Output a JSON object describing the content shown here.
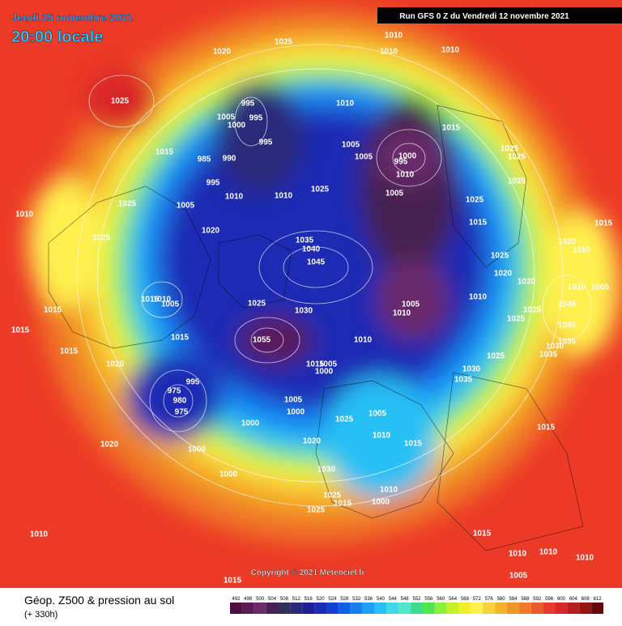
{
  "header": {
    "date": "Jeudi 25 novembre 2021",
    "time": "20:00 locale",
    "run": "Run GFS 0 Z du Vendredi 12 novembre 2021",
    "copyright": "Copyright © 2021 Meteociel.fr"
  },
  "footer": {
    "title": "Géop. Z500 & pression au sol",
    "lead": "(+ 330h)"
  },
  "scale": {
    "values": [
      492,
      496,
      500,
      504,
      508,
      512,
      516,
      520,
      524,
      528,
      532,
      536,
      540,
      544,
      548,
      552,
      556,
      560,
      564,
      568,
      572,
      576,
      580,
      584,
      588,
      592,
      596,
      600,
      604,
      608,
      612
    ],
    "colors": [
      "#4b1040",
      "#5a1a55",
      "#6b2a6b",
      "#452050",
      "#30305a",
      "#2a2a7a",
      "#1e1e96",
      "#1a2ab4",
      "#1440d2",
      "#1060e6",
      "#1480f0",
      "#1ca0f5",
      "#28c0f5",
      "#40d8e8",
      "#50e6c8",
      "#3cdc8c",
      "#50e650",
      "#8cf03c",
      "#c8f028",
      "#f0f028",
      "#fff050",
      "#f8d23c",
      "#f5b428",
      "#f09628",
      "#f07828",
      "#eb5a28",
      "#e63c28",
      "#d82828",
      "#b41e1e",
      "#961414",
      "#640a0a"
    ]
  },
  "isobar_labels": [
    "1025",
    "1010",
    "1020",
    "1010",
    "1010",
    "1025",
    "1010",
    "995",
    "995",
    "1005",
    "1000",
    "1015",
    "995",
    "1015",
    "1005",
    "1005",
    "1000",
    "995",
    "1010",
    "1025",
    "1025",
    "985",
    "990",
    "995",
    "1025",
    "1010",
    "1010",
    "1025",
    "1005",
    "1025",
    "1005",
    "1025",
    "1010",
    "1015",
    "1015",
    "1020",
    "1025",
    "1035",
    "1040",
    "1020",
    "1025",
    "1045",
    "1010",
    "1020",
    "1020",
    "1015",
    "1010",
    "1005",
    "1010",
    "1005",
    "1025",
    "1005",
    "1010",
    "1030",
    "1010",
    "1015",
    "1025",
    "1045",
    "1025",
    "1030",
    "1015",
    "1015",
    "1055",
    "1010",
    "1030",
    "1035",
    "1015",
    "1035",
    "1025",
    "1015",
    "1005",
    "1000",
    "1020",
    "1030",
    "995",
    "975",
    "1035",
    "980",
    "975",
    "1005",
    "1000",
    "1005",
    "1025",
    "1015",
    "1000",
    "1010",
    "1020",
    "1015",
    "1000",
    "1020",
    "1030",
    "1000",
    "1010",
    "1025",
    "1015",
    "1000",
    "1025",
    "1010",
    "1015",
    "1010",
    "1010",
    "1010",
    "1005",
    "1015"
  ]
}
